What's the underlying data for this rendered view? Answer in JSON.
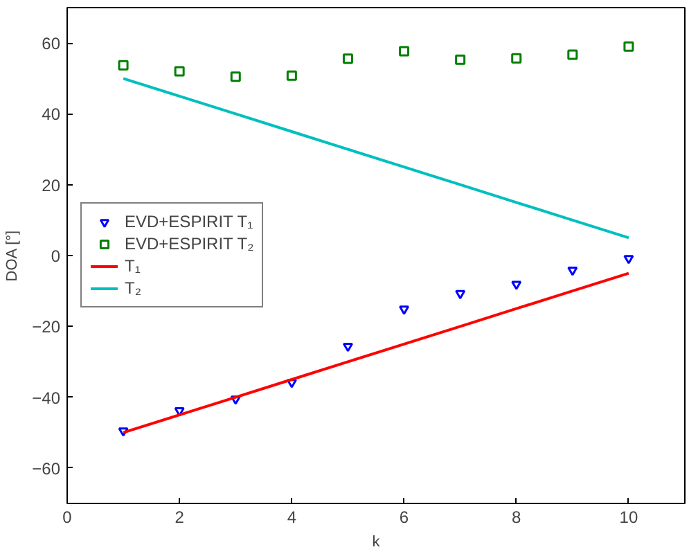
{
  "chart_data": {
    "type": "scatter",
    "xlabel": "k",
    "ylabel": "DOA [°]",
    "xlim": [
      0,
      11
    ],
    "ylim": [
      -70,
      70
    ],
    "xticks": [
      0,
      2,
      4,
      6,
      8,
      10
    ],
    "yticks": [
      -60,
      -40,
      -20,
      0,
      20,
      40,
      60
    ],
    "grid": false,
    "legend": "left",
    "x": [
      1,
      2,
      3,
      4,
      5,
      6,
      7,
      8,
      9,
      10
    ],
    "series": [
      {
        "name": "EVD+ESPIRIT T₁",
        "marker": "triangle",
        "color": "#0000ff",
        "values": [
          -49.5,
          -43.8,
          -40.5,
          -35.8,
          -25.6,
          -15.1,
          -10.7,
          -8.1,
          -4.1,
          -0.8
        ]
      },
      {
        "name": "EVD+ESPIRIT T₂",
        "marker": "square",
        "color": "#008000",
        "values": [
          53.7,
          52,
          50.5,
          50.8,
          55.6,
          57.7,
          55.3,
          55.7,
          56.7,
          59
        ]
      },
      {
        "name": "T₁",
        "type": "line",
        "color": "#ff0000",
        "values": [
          -50,
          -45,
          -40,
          -35,
          -30,
          -25,
          -20,
          -15,
          -10,
          -5
        ]
      },
      {
        "name": "T₂",
        "type": "line",
        "color": "#00bfbf",
        "values": [
          50,
          45,
          40,
          35,
          30,
          25,
          20,
          15,
          10,
          5
        ]
      }
    ]
  }
}
